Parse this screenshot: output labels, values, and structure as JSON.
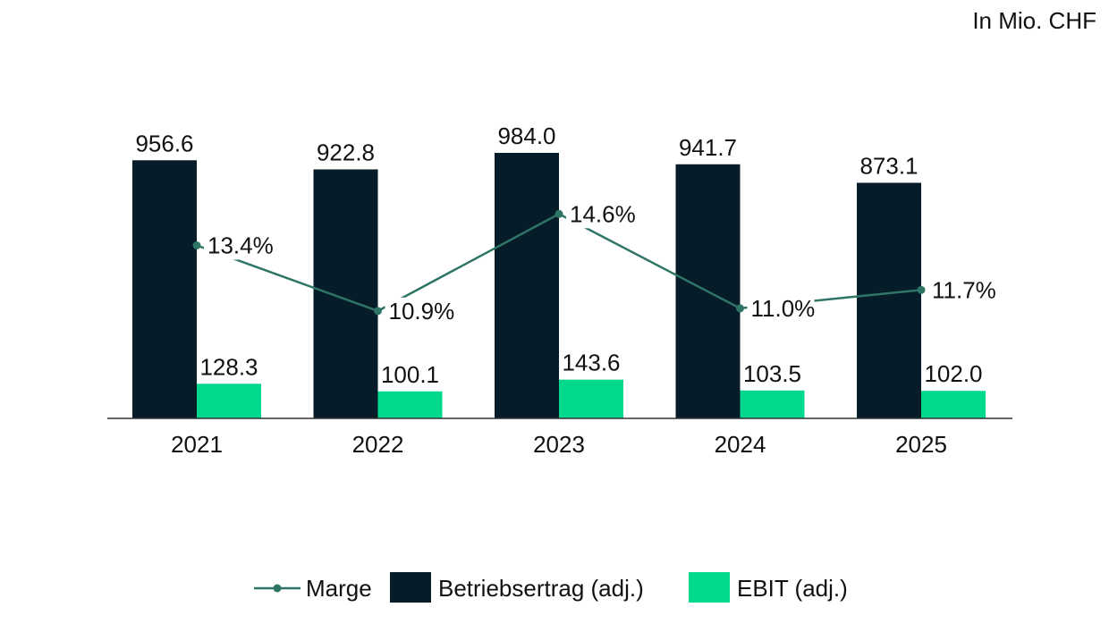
{
  "unit_label": "In Mio. CHF",
  "colors": {
    "betriebsertrag": "#071c29",
    "ebit": "#00d98b",
    "marge": "#2e7566",
    "axis": "#333333"
  },
  "chart_data": {
    "type": "bar",
    "categories": [
      "2021",
      "2022",
      "2023",
      "2024",
      "2025"
    ],
    "series": [
      {
        "name": "Betriebsertrag (adj.)",
        "type": "bar",
        "values": [
          956.6,
          922.8,
          984.0,
          941.7,
          873.1
        ],
        "labels": [
          "956.6",
          "922.8",
          "984.0",
          "941.7",
          "873.1"
        ]
      },
      {
        "name": "EBIT (adj.)",
        "type": "bar",
        "values": [
          128.3,
          100.1,
          143.6,
          103.5,
          102.0
        ],
        "labels": [
          "128.3",
          "100.1",
          "143.6",
          "103.5",
          "102.0"
        ]
      },
      {
        "name": "Marge",
        "type": "line",
        "values": [
          13.4,
          10.9,
          14.6,
          11.0,
          11.7
        ],
        "labels": [
          "13.4%",
          "10.9%",
          "14.6%",
          "11.0%",
          "11.7%"
        ]
      }
    ],
    "ylim": [
      0,
      1000
    ],
    "legend_position": "bottom",
    "grid": false
  }
}
